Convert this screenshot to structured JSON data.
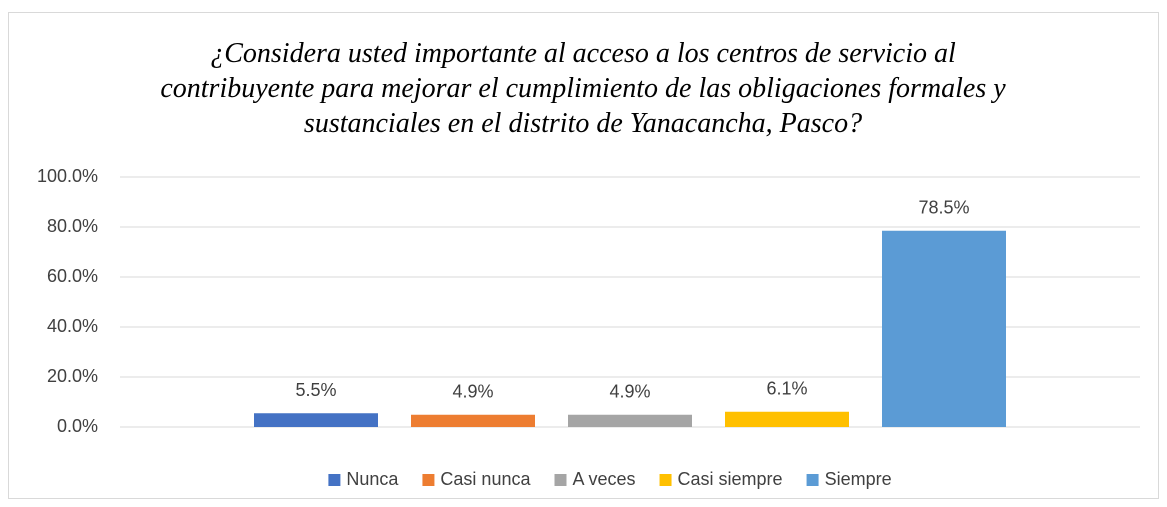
{
  "chart_data": {
    "type": "bar",
    "title": "¿Considera usted importante al acceso a los centros de servicio al contribuyente para mejorar el cumplimiento de las obligaciones formales y sustanciales en el distrito de Yanacancha, Pasco?",
    "categories": [
      null
    ],
    "series": [
      {
        "name": "Nunca",
        "color": "#4472c4",
        "values": [
          5.5
        ],
        "value_labels": [
          "5.5%"
        ]
      },
      {
        "name": "Casi nunca",
        "color": "#ed7d31",
        "values": [
          4.9
        ],
        "value_labels": [
          "4.9%"
        ]
      },
      {
        "name": "A veces",
        "color": "#a5a5a5",
        "values": [
          4.9
        ],
        "value_labels": [
          "4.9%"
        ]
      },
      {
        "name": "Casi siempre",
        "color": "#ffc000",
        "values": [
          6.1
        ],
        "value_labels": [
          "6.1%"
        ]
      },
      {
        "name": "Siempre",
        "color": "#5b9bd5",
        "values": [
          78.5
        ],
        "value_labels": [
          "78.5%"
        ]
      }
    ],
    "ylim": [
      0,
      100
    ],
    "yticks": [
      {
        "value": 0,
        "label": "0.0%"
      },
      {
        "value": 20,
        "label": "20.0%"
      },
      {
        "value": 40,
        "label": "40.0%"
      },
      {
        "value": 60,
        "label": "60.0%"
      },
      {
        "value": 80,
        "label": "80.0%"
      },
      {
        "value": 100,
        "label": "100.0%"
      }
    ],
    "grid": true,
    "legend": "bottom"
  }
}
